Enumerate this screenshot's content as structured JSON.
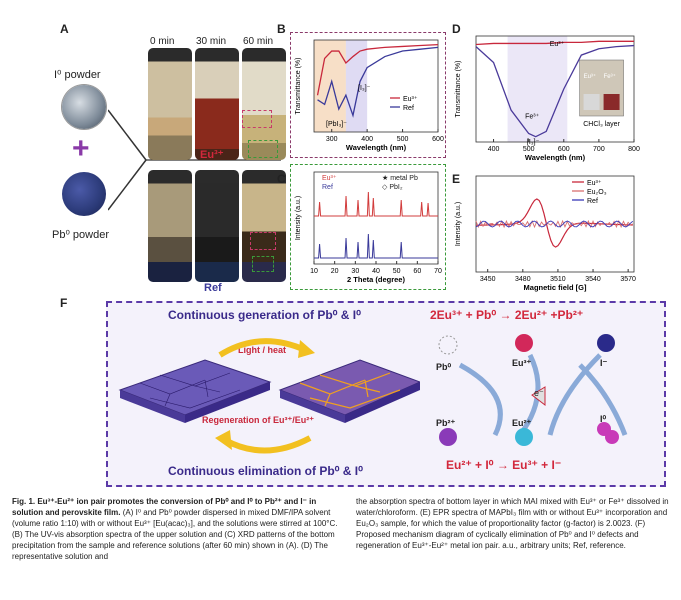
{
  "panelA": {
    "letter": "A",
    "times": [
      "0 min",
      "30 min",
      "60 min"
    ],
    "i0_powder": "I⁰ powder",
    "pb0_powder": "Pb⁰ powder",
    "plus": "+",
    "eu_label": "Eu³⁺",
    "ref_label": "Ref"
  },
  "panelB": {
    "letter": "B",
    "chart_data": {
      "type": "line",
      "xlabel": "Wavelength (nm)",
      "ylabel": "Transmittance (%)",
      "xlim": [
        250,
        600
      ],
      "x_ticks": [
        300,
        400,
        500,
        600
      ],
      "legend": [
        "Eu³⁺",
        "Ref"
      ],
      "annotations": [
        "[PbI₃]⁻",
        "[I₃]⁻"
      ],
      "series": [
        {
          "name": "Eu³⁺",
          "color": "#c8283c",
          "x": [
            260,
            280,
            300,
            320,
            340,
            360,
            380,
            400,
            450,
            500,
            550,
            600
          ],
          "y": [
            40,
            80,
            88,
            88,
            75,
            82,
            88,
            90,
            92,
            93,
            94,
            95
          ]
        },
        {
          "name": "Ref",
          "color": "#3a3a9a",
          "x": [
            260,
            280,
            300,
            320,
            340,
            360,
            380,
            400,
            450,
            500,
            550,
            600
          ],
          "y": [
            35,
            30,
            55,
            25,
            40,
            18,
            55,
            70,
            82,
            88,
            90,
            92
          ]
        }
      ]
    }
  },
  "panelC": {
    "letter": "C",
    "chart_data": {
      "type": "line",
      "xlabel": "2 Theta (degree)",
      "ylabel": "Intensity (a.u.)",
      "xlim": [
        10,
        70
      ],
      "x_ticks": [
        10,
        20,
        30,
        40,
        50,
        60,
        70
      ],
      "legend": [
        "Eu³⁺",
        "Ref",
        "★ metal Pb",
        "◇ PbI₂"
      ],
      "series": [
        {
          "name": "Eu³⁺",
          "color": "#d23c3c",
          "peaks": [
            12.7,
            25.5,
            31.3,
            36.3,
            38.7,
            52.2,
            62.1,
            65.2
          ]
        },
        {
          "name": "Ref",
          "color": "#3a3a9a",
          "peaks": [
            12.7,
            25.5,
            31.3,
            36.3,
            38.7,
            52.2
          ]
        }
      ]
    }
  },
  "panelD": {
    "letter": "D",
    "chart_data": {
      "type": "line",
      "xlabel": "Wavelength (nm)",
      "ylabel": "Transmittance (%)",
      "xlim": [
        350,
        800
      ],
      "x_ticks": [
        400,
        500,
        600,
        700,
        800
      ],
      "annotations": [
        "Eu³⁺",
        "Fe³⁺",
        "[I₃]⁻",
        "CHCl₃ layer"
      ],
      "inset_labels": [
        "Eu³⁺",
        "Fe³⁺"
      ],
      "series": [
        {
          "name": "Eu³⁺",
          "color": "#c8283c",
          "x": [
            350,
            400,
            450,
            500,
            550,
            600,
            650,
            700,
            750,
            800
          ],
          "y": [
            92,
            93,
            93,
            93,
            93,
            94,
            94,
            95,
            95,
            95
          ]
        },
        {
          "name": "Fe³⁺",
          "color": "#4a3a9a",
          "x": [
            350,
            400,
            450,
            500,
            520,
            550,
            600,
            650,
            700,
            750,
            800
          ],
          "y": [
            90,
            75,
            30,
            8,
            5,
            10,
            50,
            82,
            88,
            90,
            91
          ]
        }
      ]
    }
  },
  "panelE": {
    "letter": "E",
    "chart_data": {
      "type": "line",
      "xlabel": "Magnetic field [G]",
      "ylabel": "Intensity (a.u.)",
      "xlim": [
        3440,
        3575
      ],
      "x_ticks": [
        3450,
        3480,
        3510,
        3540,
        3570
      ],
      "legend": [
        "Eu³⁺",
        "Eu₂O₃",
        "Ref"
      ]
    }
  },
  "panelF": {
    "letter": "F",
    "top_title": "Continuous generation of Pb⁰ & I⁰",
    "bottom_title": "Continuous elimination of Pb⁰ & I⁰",
    "light_heat": "Light / heat",
    "regeneration": "Regeneration of Eu³⁺/Eu²⁺",
    "eq_top": "2Eu³⁺ + Pb⁰ → 2Eu²⁺ +Pb²⁺",
    "eq_bottom": "Eu²⁺ + I⁰ → Eu³⁺ + I⁻",
    "species": [
      "Pb⁰",
      "Eu³⁺",
      "I⁻",
      "Pb²⁺",
      "Eu²⁺",
      "I⁰"
    ],
    "electron": "e⁻"
  },
  "caption": {
    "title": "Fig. 1. Eu³⁺-Eu²⁺ ion pair promotes the conversion of Pb⁰ and I⁰ to Pb²⁺ and I⁻ in solution and perovskite film.",
    "body_left": "(A) I⁰ and Pb⁰ powder dispersed in mixed DMF/IPA solvent (volume ratio 1:10) with or without Eu³⁺ [Eu(acac)₃], and the solutions were stirred at 100°C. (B) The UV-vis absorption spectra of the upper solution and (C) XRD patterns of the bottom precipitation from the sample and reference solutions (after 60 min) shown in (A). (D) The representative solution and",
    "body_right": "the absorption spectra of bottom layer in which MAI mixed with Eu³⁺ or Fe³⁺ dissolved in water/chloroform. (E) EPR spectra of MAPbI₃ film with or without Eu³⁺ incorporation and Eu₂O₃ sample, for which the value of proportionality factor (g-factor) is 2.0023. (F) Proposed mechanism diagram of cyclically elimination of Pb⁰ and I⁰ defects and regeneration of Eu³⁺-Eu²⁺ metal ion pair. a.u., arbitrary units; Ref, reference."
  },
  "colors": {
    "purple": "#5b3aa8",
    "red": "#d2283c",
    "green": "#3a9a3a",
    "blue": "#3a3a9a"
  }
}
